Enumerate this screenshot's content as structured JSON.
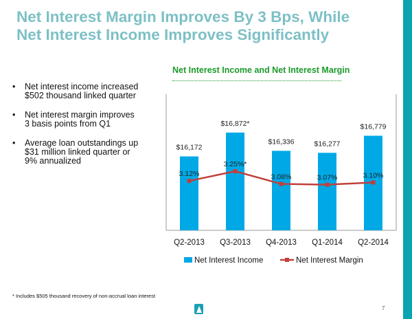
{
  "header": {
    "title_line1": "Net Interest Margin Improves By 3 Bps, While",
    "title_line2": "Net Interest Income Improves Significantly"
  },
  "bullets": [
    {
      "line1": "Net interest income increased",
      "line2": "$502 thousand linked quarter"
    },
    {
      "line1": "Net interest margin improves",
      "line2": "3 basis points from Q1"
    },
    {
      "line1": "Average loan outstandings up",
      "line2": "$31 million linked quarter or",
      "line3": "9% annualized"
    }
  ],
  "footnote": "* Includes $505 thousand recovery of non-accrual loan interest",
  "page_number": "7",
  "colors": {
    "bar": "#00a9e6",
    "line": "#c0403c",
    "accent": "#0aa3b2"
  },
  "chart_data": {
    "type": "bar",
    "title": "Net Interest Income and Net Interest Margin",
    "categories": [
      "Q2-2013",
      "Q3-2013",
      "Q4-2013",
      "Q1-2014",
      "Q2-2014"
    ],
    "series": [
      {
        "name": "Net Interest Income",
        "type": "bar",
        "values": [
          16172,
          16872,
          16336,
          16277,
          16779
        ],
        "labels": [
          "$16,172",
          "$16,872*",
          "$16,336",
          "$16,277",
          "$16,779"
        ]
      },
      {
        "name": "Net Interest Margin",
        "type": "line",
        "values": [
          3.12,
          3.25,
          3.08,
          3.07,
          3.1
        ],
        "labels": [
          "3.12%",
          "3.25%*",
          "3.08%",
          "3.07%",
          "3.10%"
        ]
      }
    ],
    "ylim": [
      14000,
      18000
    ],
    "ylim_secondary": [
      2.46,
      4.28
    ],
    "legend": "bottom"
  }
}
